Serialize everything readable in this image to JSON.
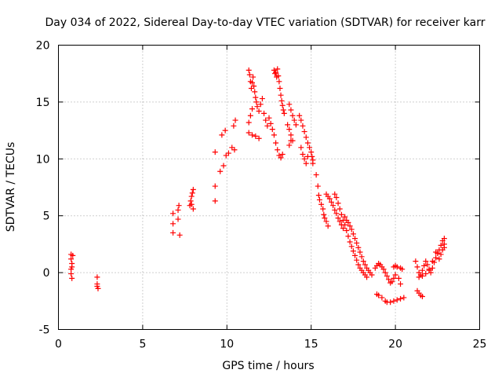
{
  "chart_data": {
    "type": "scatter",
    "title": "Day 034 of 2022, Sidereal Day-to-day VTEC variation (SDTVAR) for receiver karr",
    "xlabel": "GPS time / hours",
    "ylabel": "SDTVAR / TECUs",
    "xlim": [
      0,
      25
    ],
    "ylim": [
      -5,
      20
    ],
    "xticks": [
      0,
      5,
      10,
      15,
      20,
      25
    ],
    "yticks": [
      -5,
      0,
      5,
      10,
      15,
      20
    ],
    "xtick_labels": [
      "0",
      "5",
      "10",
      "15",
      "20",
      "25"
    ],
    "ytick_labels": [
      "-5",
      "0",
      "5",
      "10",
      "15",
      "20"
    ],
    "grid": true,
    "marker": "+",
    "color": "#ff0000",
    "series": [
      {
        "name": "SDTVAR",
        "points": [
          [
            0.75,
            1.6
          ],
          [
            0.75,
            1.2
          ],
          [
            0.8,
            0.8
          ],
          [
            0.75,
            0.3
          ],
          [
            0.75,
            -0.1
          ],
          [
            0.8,
            -0.5
          ],
          [
            0.85,
            1.5
          ],
          [
            0.8,
            0.5
          ],
          [
            2.3,
            -0.4
          ],
          [
            2.3,
            -1.0
          ],
          [
            2.35,
            -1.4
          ],
          [
            2.3,
            -1.2
          ],
          [
            6.8,
            5.2
          ],
          [
            6.8,
            4.3
          ],
          [
            6.8,
            3.5
          ],
          [
            7.1,
            5.5
          ],
          [
            7.1,
            4.7
          ],
          [
            7.15,
            5.9
          ],
          [
            7.2,
            3.3
          ],
          [
            7.8,
            5.9
          ],
          [
            7.85,
            6.3
          ],
          [
            7.9,
            6.7
          ],
          [
            7.95,
            7.0
          ],
          [
            8.0,
            7.3
          ],
          [
            7.9,
            6.0
          ],
          [
            8.0,
            5.6
          ],
          [
            9.3,
            10.6
          ],
          [
            9.3,
            7.6
          ],
          [
            9.3,
            6.3
          ],
          [
            9.6,
            8.9
          ],
          [
            9.7,
            12.1
          ],
          [
            9.8,
            9.4
          ],
          [
            9.9,
            12.5
          ],
          [
            9.95,
            10.3
          ],
          [
            10.1,
            10.5
          ],
          [
            10.3,
            11.0
          ],
          [
            10.4,
            12.9
          ],
          [
            10.5,
            13.4
          ],
          [
            10.45,
            10.8
          ],
          [
            11.3,
            17.8
          ],
          [
            11.35,
            17.4
          ],
          [
            11.4,
            16.8
          ],
          [
            11.45,
            16.2
          ],
          [
            11.5,
            16.7
          ],
          [
            11.55,
            17.2
          ],
          [
            11.6,
            16.4
          ],
          [
            11.65,
            15.9
          ],
          [
            11.7,
            15.4
          ],
          [
            11.75,
            15.0
          ],
          [
            11.8,
            14.6
          ],
          [
            11.9,
            14.2
          ],
          [
            12.0,
            14.8
          ],
          [
            12.1,
            15.3
          ],
          [
            12.2,
            14.0
          ],
          [
            12.3,
            13.4
          ],
          [
            12.4,
            12.9
          ],
          [
            12.5,
            13.6
          ],
          [
            12.6,
            13.1
          ],
          [
            12.7,
            12.6
          ],
          [
            12.8,
            12.1
          ],
          [
            12.9,
            11.4
          ],
          [
            13.0,
            10.8
          ],
          [
            13.1,
            10.3
          ],
          [
            13.2,
            10.1
          ],
          [
            13.3,
            10.4
          ],
          [
            11.3,
            13.2
          ],
          [
            11.4,
            13.8
          ],
          [
            11.5,
            14.4
          ],
          [
            11.3,
            12.3
          ],
          [
            11.5,
            12.1
          ],
          [
            11.7,
            12.0
          ],
          [
            11.9,
            11.8
          ],
          [
            12.8,
            17.8
          ],
          [
            12.85,
            17.5
          ],
          [
            12.9,
            17.6
          ],
          [
            12.95,
            17.2
          ],
          [
            13.0,
            17.9
          ],
          [
            13.05,
            17.3
          ],
          [
            13.1,
            16.8
          ],
          [
            13.15,
            16.2
          ],
          [
            13.2,
            15.6
          ],
          [
            13.25,
            15.1
          ],
          [
            13.3,
            14.7
          ],
          [
            13.35,
            14.3
          ],
          [
            13.4,
            14.0
          ],
          [
            13.6,
            13.0
          ],
          [
            13.7,
            12.6
          ],
          [
            13.8,
            12.1
          ],
          [
            13.9,
            11.6
          ],
          [
            13.7,
            11.2
          ],
          [
            13.8,
            11.6
          ],
          [
            13.7,
            14.8
          ],
          [
            13.8,
            14.3
          ],
          [
            13.9,
            13.8
          ],
          [
            14.0,
            13.4
          ],
          [
            14.1,
            13.0
          ],
          [
            14.3,
            13.8
          ],
          [
            14.4,
            13.4
          ],
          [
            14.5,
            12.9
          ],
          [
            14.6,
            12.4
          ],
          [
            14.7,
            11.9
          ],
          [
            14.8,
            11.4
          ],
          [
            14.9,
            11.0
          ],
          [
            15.0,
            10.6
          ],
          [
            15.05,
            10.2
          ],
          [
            15.1,
            9.9
          ],
          [
            15.1,
            9.6
          ],
          [
            14.4,
            11.0
          ],
          [
            14.5,
            10.4
          ],
          [
            14.6,
            10.0
          ],
          [
            14.7,
            9.6
          ],
          [
            14.8,
            10.2
          ],
          [
            15.3,
            8.6
          ],
          [
            15.4,
            7.6
          ],
          [
            15.45,
            6.8
          ],
          [
            15.5,
            6.4
          ],
          [
            15.6,
            6.0
          ],
          [
            15.7,
            5.6
          ],
          [
            15.75,
            5.1
          ],
          [
            15.8,
            4.8
          ],
          [
            15.9,
            4.5
          ],
          [
            16.0,
            4.1
          ],
          [
            15.9,
            6.9
          ],
          [
            16.0,
            6.7
          ],
          [
            16.1,
            6.5
          ],
          [
            16.2,
            6.2
          ],
          [
            16.3,
            5.9
          ],
          [
            16.4,
            5.5
          ],
          [
            16.5,
            5.2
          ],
          [
            16.6,
            4.8
          ],
          [
            16.7,
            4.5
          ],
          [
            16.8,
            4.2
          ],
          [
            16.9,
            3.9
          ],
          [
            16.4,
            6.9
          ],
          [
            16.5,
            6.6
          ],
          [
            16.6,
            6.1
          ],
          [
            16.7,
            5.6
          ],
          [
            16.8,
            5.1
          ],
          [
            16.9,
            4.6
          ],
          [
            17.0,
            4.2
          ],
          [
            17.1,
            3.7
          ],
          [
            17.2,
            3.2
          ],
          [
            17.3,
            2.7
          ],
          [
            17.4,
            2.3
          ],
          [
            17.5,
            1.9
          ],
          [
            17.6,
            1.5
          ],
          [
            17.7,
            1.1
          ],
          [
            17.8,
            0.7
          ],
          [
            17.9,
            0.4
          ],
          [
            18.0,
            0.2
          ],
          [
            18.1,
            0.0
          ],
          [
            18.2,
            -0.2
          ],
          [
            18.3,
            -0.4
          ],
          [
            17.0,
            4.9
          ],
          [
            17.1,
            4.6
          ],
          [
            17.2,
            4.4
          ],
          [
            17.3,
            4.1
          ],
          [
            17.4,
            3.8
          ],
          [
            17.5,
            3.4
          ],
          [
            17.6,
            3.0
          ],
          [
            17.7,
            2.6
          ],
          [
            17.8,
            2.2
          ],
          [
            17.9,
            1.8
          ],
          [
            18.0,
            1.4
          ],
          [
            18.1,
            1.0
          ],
          [
            18.2,
            0.7
          ],
          [
            18.3,
            0.4
          ],
          [
            18.4,
            0.2
          ],
          [
            18.5,
            0.0
          ],
          [
            18.6,
            -0.2
          ],
          [
            18.8,
            0.4
          ],
          [
            18.9,
            0.6
          ],
          [
            19.0,
            0.8
          ],
          [
            19.1,
            0.7
          ],
          [
            19.2,
            0.5
          ],
          [
            19.3,
            0.3
          ],
          [
            19.4,
            0.0
          ],
          [
            19.5,
            -0.3
          ],
          [
            19.6,
            -0.6
          ],
          [
            19.7,
            -0.9
          ],
          [
            19.8,
            -0.8
          ],
          [
            19.9,
            -0.5
          ],
          [
            20.0,
            -0.2
          ],
          [
            18.9,
            -1.9
          ],
          [
            19.0,
            -2.0
          ],
          [
            19.2,
            -2.2
          ],
          [
            19.4,
            -2.5
          ],
          [
            19.5,
            -2.6
          ],
          [
            19.7,
            -2.6
          ],
          [
            19.9,
            -2.5
          ],
          [
            20.1,
            -2.4
          ],
          [
            20.3,
            -2.3
          ],
          [
            20.5,
            -2.2
          ],
          [
            19.9,
            0.5
          ],
          [
            20.0,
            0.6
          ],
          [
            20.1,
            0.5
          ],
          [
            20.3,
            0.4
          ],
          [
            20.4,
            0.3
          ],
          [
            20.2,
            -0.5
          ],
          [
            20.3,
            -1.0
          ],
          [
            21.3,
            -1.6
          ],
          [
            21.4,
            -1.8
          ],
          [
            21.5,
            -2.0
          ],
          [
            21.6,
            -2.1
          ],
          [
            21.2,
            1.0
          ],
          [
            21.3,
            0.5
          ],
          [
            21.4,
            0.0
          ],
          [
            21.5,
            -0.2
          ],
          [
            21.6,
            0.2
          ],
          [
            21.7,
            0.6
          ],
          [
            21.8,
            1.0
          ],
          [
            21.9,
            0.7
          ],
          [
            22.0,
            0.3
          ],
          [
            22.1,
            0.0
          ],
          [
            22.2,
            0.4
          ],
          [
            22.3,
            0.9
          ],
          [
            22.4,
            1.3
          ],
          [
            22.5,
            1.7
          ],
          [
            22.6,
            2.0
          ],
          [
            22.7,
            2.4
          ],
          [
            22.8,
            2.8
          ],
          [
            22.9,
            3.0
          ],
          [
            22.9,
            2.2
          ],
          [
            21.4,
            -0.4
          ],
          [
            21.6,
            -0.3
          ],
          [
            21.8,
            -0.1
          ],
          [
            22.0,
            0.2
          ],
          [
            22.2,
            1.0
          ],
          [
            22.4,
            1.8
          ],
          [
            22.6,
            1.2
          ],
          [
            22.7,
            1.6
          ],
          [
            22.8,
            2.0
          ],
          [
            22.9,
            2.5
          ]
        ]
      }
    ]
  }
}
